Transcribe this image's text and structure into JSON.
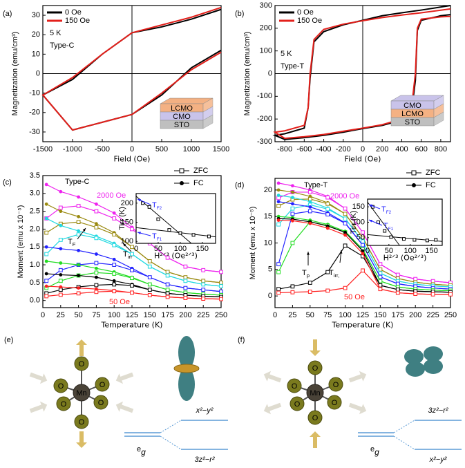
{
  "chart_data": [
    {
      "type": "line",
      "panel_label": "(a)",
      "xlabel": "Field (Oe)",
      "ylabel": "Magnetization (emu/cm³)",
      "x": [
        1500,
        1000,
        500,
        0,
        -500,
        -1000,
        -1500,
        -1000,
        -500,
        0,
        500,
        1000,
        1500
      ],
      "xlim": [
        -1500,
        1500
      ],
      "xticks": [
        -1500,
        -1000,
        -500,
        0,
        500,
        1000,
        1500
      ],
      "ylim": [
        -35,
        35
      ],
      "yticks": [
        -30,
        -20,
        -10,
        0,
        10,
        20,
        30
      ],
      "zero_lines": true,
      "series": [
        {
          "name": "0 Oe",
          "color": "#000000",
          "values": [
            33,
            28,
            24,
            21,
            10,
            -3,
            -11,
            -29,
            -25,
            -21,
            -11,
            3,
            12
          ]
        },
        {
          "name": "150 Oe",
          "color": "#e3201b",
          "values": [
            34,
            29,
            25,
            21,
            10,
            -2,
            -11,
            -29,
            -25,
            -21,
            -10,
            2,
            11
          ]
        }
      ],
      "annotations": [
        {
          "text": "5 K",
          "color": "#000000"
        },
        {
          "text": "Type-C",
          "color": "#000000"
        }
      ],
      "layers": [
        {
          "label": "LCMO",
          "color": "#f4b183"
        },
        {
          "label": "CMO",
          "color": "#c9c3ea"
        },
        {
          "label": "STO",
          "color": "#bfbfbf"
        }
      ]
    },
    {
      "type": "line",
      "panel_label": "(b)",
      "xlabel": "Field (Oe)",
      "ylabel": "Magnetization (emu/cm³)",
      "x": [
        900,
        600,
        400,
        200,
        0,
        -200,
        -400,
        -500,
        -540,
        -560,
        -600,
        -800,
        -900,
        -800,
        -600,
        -400,
        -200,
        0,
        200,
        400,
        500,
        540,
        560,
        600,
        800,
        900
      ],
      "xlim": [
        -900,
        900
      ],
      "xticks": [
        -800,
        -600,
        -400,
        -200,
        0,
        200,
        400,
        600,
        800
      ],
      "ylim": [
        -300,
        300
      ],
      "yticks": [
        -300,
        -200,
        -100,
        0,
        100,
        200,
        300
      ],
      "zero_lines": true,
      "series": [
        {
          "name": "0 Oe",
          "color": "#000000",
          "values": [
            300,
            280,
            268,
            255,
            235,
            215,
            185,
            140,
            -20,
            -150,
            -240,
            -265,
            -272,
            -290,
            -282,
            -272,
            -258,
            -242,
            -228,
            -205,
            -170,
            -30,
            190,
            235,
            255,
            260
          ]
        },
        {
          "name": "150 Oe",
          "color": "#e3201b",
          "values": [
            285,
            268,
            258,
            247,
            233,
            218,
            195,
            150,
            0,
            -150,
            -228,
            -252,
            -258,
            -285,
            -278,
            -268,
            -254,
            -240,
            -225,
            -200,
            -150,
            0,
            200,
            240,
            250,
            252
          ]
        }
      ],
      "annotations": [
        {
          "text": "5 K",
          "color": "#000000"
        },
        {
          "text": "Type-T",
          "color": "#000000"
        }
      ],
      "layers": [
        {
          "label": "CMO",
          "color": "#c9c3ea"
        },
        {
          "label": "LCMO",
          "color": "#f4b183"
        },
        {
          "label": "STO",
          "color": "#bfbfbf"
        }
      ]
    },
    {
      "type": "line",
      "panel_label": "(c)",
      "xlabel": "Temperature (K)",
      "ylabel": "Moment (emu x 10⁻⁵)",
      "x": [
        5,
        25,
        50,
        75,
        100,
        125,
        150,
        175,
        200,
        225,
        250
      ],
      "xlim": [
        0,
        250
      ],
      "xticks": [
        0,
        25,
        50,
        75,
        100,
        125,
        150,
        175,
        200,
        225,
        250
      ],
      "ylim": [
        -0.2,
        3.5
      ],
      "yticks": [
        {
          "value": 0,
          "label": "0.0"
        },
        0.5,
        {
          "value": 1,
          "label": "1.0"
        },
        1.5,
        {
          "value": 2,
          "label": "2.0"
        },
        2.5,
        {
          "value": 3,
          "label": "3.0"
        },
        3.5
      ],
      "legend": [
        {
          "label": "ZFC",
          "marker": "open"
        },
        {
          "label": "FC",
          "marker": "filled"
        }
      ],
      "series": [
        {
          "color": "#ee22ee",
          "marker": "filled",
          "values": [
            3.25,
            3.05,
            2.9,
            2.7,
            2.45,
            2.05,
            1.6,
            1.2,
            0.95,
            0.85,
            0.8
          ]
        },
        {
          "color": "#ee22ee",
          "marker": "open",
          "values": [
            2.3,
            2.6,
            2.65,
            2.5,
            2.3,
            2.0,
            1.6,
            1.2,
            0.95,
            0.85,
            0.8
          ]
        },
        {
          "color": "#9a8a10",
          "marker": "filled",
          "values": [
            2.7,
            2.5,
            2.35,
            2.15,
            1.9,
            1.5,
            1.1,
            0.8,
            0.65,
            0.55,
            0.5
          ]
        },
        {
          "color": "#9a8a10",
          "marker": "open",
          "values": [
            1.9,
            2.15,
            2.2,
            2.05,
            1.85,
            1.5,
            1.1,
            0.8,
            0.65,
            0.55,
            0.5
          ]
        },
        {
          "color": "#1ed8e0",
          "marker": "filled",
          "values": [
            2.3,
            2.1,
            1.95,
            1.8,
            1.6,
            1.3,
            0.95,
            0.7,
            0.55,
            0.45,
            0.4
          ]
        },
        {
          "color": "#1ed8e0",
          "marker": "open",
          "values": [
            1.3,
            1.7,
            1.85,
            1.75,
            1.55,
            1.3,
            0.95,
            0.7,
            0.55,
            0.45,
            0.4
          ]
        },
        {
          "color": "#2222ff",
          "marker": "filled",
          "values": [
            1.5,
            1.45,
            1.4,
            1.3,
            1.15,
            0.9,
            0.65,
            0.45,
            0.35,
            0.3,
            0.25
          ]
        },
        {
          "color": "#2222ff",
          "marker": "open",
          "values": [
            0.55,
            0.85,
            1.0,
            1.05,
            1.0,
            0.85,
            0.65,
            0.45,
            0.35,
            0.3,
            0.25
          ]
        },
        {
          "color": "#22dd22",
          "marker": "filled",
          "values": [
            1.1,
            1.05,
            1.0,
            0.9,
            0.8,
            0.65,
            0.45,
            0.3,
            0.22,
            0.18,
            0.15
          ]
        },
        {
          "color": "#22dd22",
          "marker": "open",
          "values": [
            0.35,
            0.55,
            0.7,
            0.78,
            0.75,
            0.63,
            0.45,
            0.3,
            0.22,
            0.18,
            0.15
          ]
        },
        {
          "color": "#000000",
          "marker": "filled",
          "values": [
            0.75,
            0.72,
            0.7,
            0.65,
            0.55,
            0.45,
            0.3,
            0.2,
            0.15,
            0.12,
            0.1
          ]
        },
        {
          "color": "#000000",
          "marker": "open",
          "values": [
            0.2,
            0.3,
            0.38,
            0.43,
            0.45,
            0.42,
            0.3,
            0.2,
            0.15,
            0.12,
            0.1
          ]
        },
        {
          "color": "#ff2020",
          "marker": "filled",
          "values": [
            0.4,
            0.38,
            0.35,
            0.32,
            0.28,
            0.22,
            0.15,
            0.1,
            0.07,
            0.05,
            0.04
          ]
        },
        {
          "color": "#ff2020",
          "marker": "open",
          "values": [
            0.12,
            0.16,
            0.2,
            0.24,
            0.26,
            0.22,
            0.15,
            0.1,
            0.07,
            0.05,
            0.04
          ]
        }
      ],
      "annotations": [
        {
          "text": "Type-C",
          "color": "#000000"
        },
        {
          "text": "2000 Oe",
          "color": "#ee22ee"
        },
        {
          "text": "50 Oe",
          "color": "#ff2020"
        },
        {
          "text": "T",
          "sub": "F",
          "color": "#000000"
        },
        {
          "text": "T",
          "sub": "irr",
          "color": "#000000"
        }
      ],
      "inset": {
        "type": "scatter",
        "xlabel": "H²ᐟ³ (Oe²ᐟ³)",
        "ylabel": "Tirr (K)",
        "x": [
          15,
          30,
          50,
          75,
          100,
          130,
          165
        ],
        "values": [
          200,
          190,
          158,
          130,
          122,
          117,
          113
        ],
        "xlim": [
          0,
          180
        ],
        "xticks": [
          0,
          50,
          100,
          150
        ],
        "ylim": [
          95,
          225
        ],
        "yticks": [
          100,
          150,
          200
        ],
        "fits": [
          {
            "x": [
              0,
              125
            ],
            "values": [
              218,
              95
            ]
          },
          {
            "x": [
              0,
              180
            ],
            "values": [
              136,
              112
            ]
          }
        ],
        "annotations": [
          {
            "text": "T",
            "sub": "F2",
            "color": "#2222ff"
          },
          {
            "text": "T",
            "sub": "F1",
            "color": "#2222ff"
          }
        ]
      }
    },
    {
      "type": "line",
      "panel_label": "(d)",
      "xlabel": "Temperature (K)",
      "ylabel": "Moment (emu x 10⁻⁵)",
      "x": [
        5,
        25,
        50,
        75,
        100,
        125,
        150,
        175,
        200,
        225,
        250
      ],
      "xlim": [
        0,
        250
      ],
      "xticks": [
        0,
        25,
        50,
        75,
        100,
        125,
        150,
        175,
        200,
        225,
        250
      ],
      "ylim": [
        -2.2,
        22.2
      ],
      "yticks": [
        0,
        5,
        10,
        15,
        20
      ],
      "legend": [
        {
          "label": "ZFC",
          "marker": "open"
        },
        {
          "label": "FC",
          "marker": "filled"
        }
      ],
      "series": [
        {
          "color": "#ee22ee",
          "marker": "filled",
          "values": [
            21.3,
            20.8,
            20.0,
            18.8,
            16.5,
            12.0,
            6.0,
            4.0,
            3.2,
            2.8,
            2.5
          ]
        },
        {
          "color": "#ee22ee",
          "marker": "open",
          "values": [
            18.5,
            19.6,
            19.6,
            18.6,
            16.5,
            12.0,
            6.0,
            4.0,
            3.2,
            2.8,
            2.5
          ]
        },
        {
          "color": "#9a8a10",
          "marker": "filled",
          "values": [
            20.0,
            19.6,
            18.8,
            17.6,
            15.5,
            11.0,
            5.0,
            3.3,
            2.6,
            2.2,
            2.0
          ]
        },
        {
          "color": "#9a8a10",
          "marker": "open",
          "values": [
            17.0,
            18.2,
            18.3,
            17.4,
            15.5,
            11.0,
            5.0,
            3.3,
            2.6,
            2.2,
            2.0
          ]
        },
        {
          "color": "#1ed8e0",
          "marker": "filled",
          "values": [
            19.0,
            18.6,
            17.8,
            16.6,
            14.6,
            10.3,
            4.3,
            2.8,
            2.2,
            1.9,
            1.7
          ]
        },
        {
          "color": "#1ed8e0",
          "marker": "open",
          "values": [
            13.5,
            16.5,
            17.2,
            16.4,
            14.6,
            10.3,
            4.3,
            2.8,
            2.2,
            1.9,
            1.7
          ]
        },
        {
          "color": "#2222ff",
          "marker": "filled",
          "values": [
            17.8,
            17.4,
            16.8,
            15.7,
            13.8,
            9.6,
            3.6,
            2.3,
            1.8,
            1.5,
            1.3
          ]
        },
        {
          "color": "#2222ff",
          "marker": "open",
          "values": [
            6.0,
            15.5,
            16.0,
            15.4,
            13.7,
            9.6,
            3.6,
            2.3,
            1.8,
            1.5,
            1.3
          ]
        },
        {
          "color": "#22dd22",
          "marker": "filled",
          "values": [
            15.0,
            14.8,
            14.3,
            13.5,
            12.2,
            8.8,
            2.8,
            1.7,
            1.3,
            1.1,
            1.0
          ]
        },
        {
          "color": "#22dd22",
          "marker": "open",
          "values": [
            4.5,
            10.0,
            14.0,
            13.3,
            12.0,
            8.8,
            2.8,
            1.7,
            1.3,
            1.1,
            1.0
          ]
        },
        {
          "color": "#000000",
          "marker": "filled",
          "values": [
            14.6,
            14.5,
            14.0,
            13.2,
            12.0,
            8.5,
            2.0,
            1.2,
            0.9,
            0.8,
            0.7
          ]
        },
        {
          "color": "#000000",
          "marker": "open",
          "values": [
            1.3,
            1.8,
            2.5,
            4.5,
            9.5,
            7.5,
            2.0,
            1.2,
            0.9,
            0.8,
            0.7
          ]
        },
        {
          "color": "#ff2020",
          "marker": "filled",
          "values": [
            14.3,
            14.2,
            13.7,
            12.8,
            11.5,
            8.0,
            1.3,
            0.6,
            0.4,
            0.3,
            0.3
          ]
        },
        {
          "color": "#ff2020",
          "marker": "open",
          "values": [
            0.6,
            0.7,
            0.8,
            1.0,
            1.5,
            4.8,
            1.3,
            0.6,
            0.4,
            0.3,
            0.3
          ]
        }
      ],
      "annotations": [
        {
          "text": "Type-T",
          "color": "#000000"
        },
        {
          "text": "2000 Oe",
          "color": "#ee22ee"
        },
        {
          "text": "50 Oe",
          "color": "#ff2020"
        },
        {
          "text": "T",
          "sub": "p",
          "color": "#000000"
        },
        {
          "text": "T",
          "sub": "irr,",
          "color": "#000000"
        }
      ],
      "inset": {
        "type": "scatter",
        "xlabel": "H²ᐟ³ (Oe²ᐟ³)",
        "ylabel": "Tirr (K)",
        "x": [
          12,
          25,
          40,
          55,
          85,
          110,
          140,
          160
        ],
        "values": [
          150,
          100,
          72,
          52,
          46,
          43,
          41,
          43
        ],
        "xlim": [
          0,
          175
        ],
        "xticks": [
          0,
          50,
          100,
          150
        ],
        "ylim": [
          25,
          175
        ],
        "yticks": [
          50,
          100,
          150
        ],
        "fits": [
          {
            "x": [
              0,
              75
            ],
            "values": [
              165,
              25
            ]
          },
          {
            "x": [
              0,
              175
            ],
            "values": [
              60,
              38
            ]
          }
        ],
        "annotations": [
          {
            "text": "T",
            "sub": "F2",
            "color": "#2222ff"
          },
          {
            "text": "T",
            "sub": "F1",
            "color": "#2222ff"
          }
        ]
      }
    }
  ],
  "diagrams": {
    "e": {
      "label": "(e)",
      "center": "Mn",
      "ligand": "O",
      "level": {
        "text": "e",
        "sub": "g"
      },
      "upper": "x²−y²",
      "lower": "3z²−r²"
    },
    "f": {
      "label": "(f)",
      "center": "Mn",
      "ligand": "O",
      "level": {
        "text": "e",
        "sub": "g"
      },
      "upper": "3z²−r²",
      "lower": "x²−y²"
    }
  }
}
